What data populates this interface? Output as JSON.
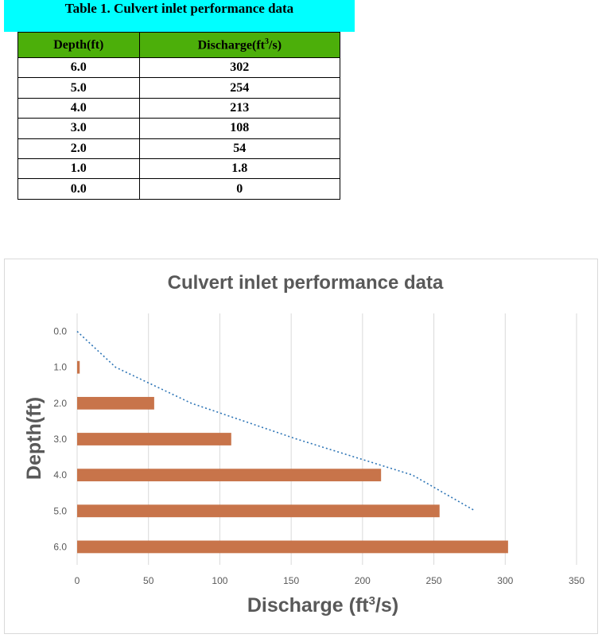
{
  "table": {
    "caption": "Table 1. Culvert inlet performance data",
    "header_depth": "Depth(ft)",
    "header_discharge_prefix": "Discharge(ft",
    "header_discharge_sup": "3",
    "header_discharge_suffix": "/s)",
    "rows": [
      {
        "depth": "6.0",
        "discharge": "302"
      },
      {
        "depth": "5.0",
        "discharge": "254"
      },
      {
        "depth": "4.0",
        "discharge": "213"
      },
      {
        "depth": "3.0",
        "discharge": "108"
      },
      {
        "depth": "2.0",
        "discharge": "54"
      },
      {
        "depth": "1.0",
        "discharge": "1.8"
      },
      {
        "depth": "0.0",
        "discharge": "0"
      }
    ]
  },
  "chart_data": {
    "type": "bar",
    "orientation": "horizontal",
    "title": "Culvert inlet performance data",
    "ylabel": "Depth(ft)",
    "xlabel_prefix": "Discharge (ft",
    "xlabel_sup": "3",
    "xlabel_suffix": "/s)",
    "categories": [
      "0.0",
      "1.0",
      "2.0",
      "3.0",
      "4.0",
      "5.0",
      "6.0"
    ],
    "values": [
      0,
      1.8,
      54,
      108,
      213,
      254,
      302
    ],
    "xlim": [
      0,
      350
    ],
    "xticks": [
      "0",
      "50",
      "100",
      "150",
      "200",
      "250",
      "300",
      "350"
    ],
    "grid": "vertical",
    "trendline": {
      "style": "dotted",
      "x": [
        0,
        27,
        80,
        154,
        235,
        279
      ],
      "y": [
        "0.0",
        "1.0",
        "2.0",
        "3.0",
        "4.0",
        "5.0"
      ]
    },
    "colors": {
      "bar": "#c8744a",
      "trendline": "#2e75b6",
      "grid": "#d9d9d9",
      "text": "#595959"
    }
  }
}
